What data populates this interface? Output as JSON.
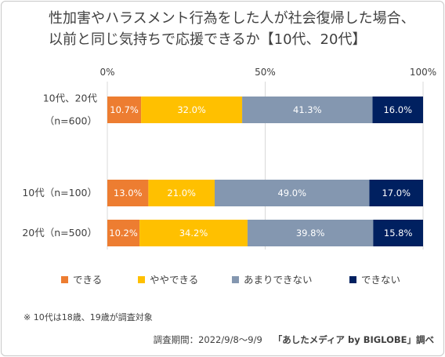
{
  "title_line1": "性加害やハラスメント行為をした人が社会復帰した場合、",
  "title_line2": "以前と同じ気持ちで応援できるか【10代、20代】",
  "chart_data": {
    "type": "bar",
    "orientation": "horizontal",
    "stacked": true,
    "percent": true,
    "xlim": [
      0,
      100
    ],
    "x_ticks": [
      "0%",
      "50%",
      "100%"
    ],
    "grid": true,
    "legend_position": "bottom",
    "categories": [
      [
        "10代、20代",
        "（n=600）"
      ],
      [
        "10代（n=100）"
      ],
      [
        "20代（n=500）"
      ]
    ],
    "series": [
      {
        "name": "できる",
        "color": "#ed7d31",
        "values": [
          10.7,
          13.0,
          10.2
        ],
        "labels": [
          "10.7%",
          "13.0%",
          "10.2%"
        ]
      },
      {
        "name": "ややできる",
        "color": "#ffc000",
        "values": [
          32.0,
          21.0,
          34.2
        ],
        "labels": [
          "32.0%",
          "21.0%",
          "34.2%"
        ]
      },
      {
        "name": "あまりできない",
        "color": "#8497b0",
        "values": [
          41.3,
          49.0,
          39.8
        ],
        "labels": [
          "41.3%",
          "49.0%",
          "39.8%"
        ]
      },
      {
        "name": "できない",
        "color": "#002060",
        "values": [
          16.0,
          17.0,
          15.8
        ],
        "labels": [
          "16.0%",
          "17.0%",
          "15.8%"
        ]
      }
    ]
  },
  "note": "※ 10代は18歳、19歳が調査対象",
  "survey_period": "調査期間：2022/9/8～9/9",
  "source_brand": "「あしたメディア by BIGLOBE」調べ"
}
